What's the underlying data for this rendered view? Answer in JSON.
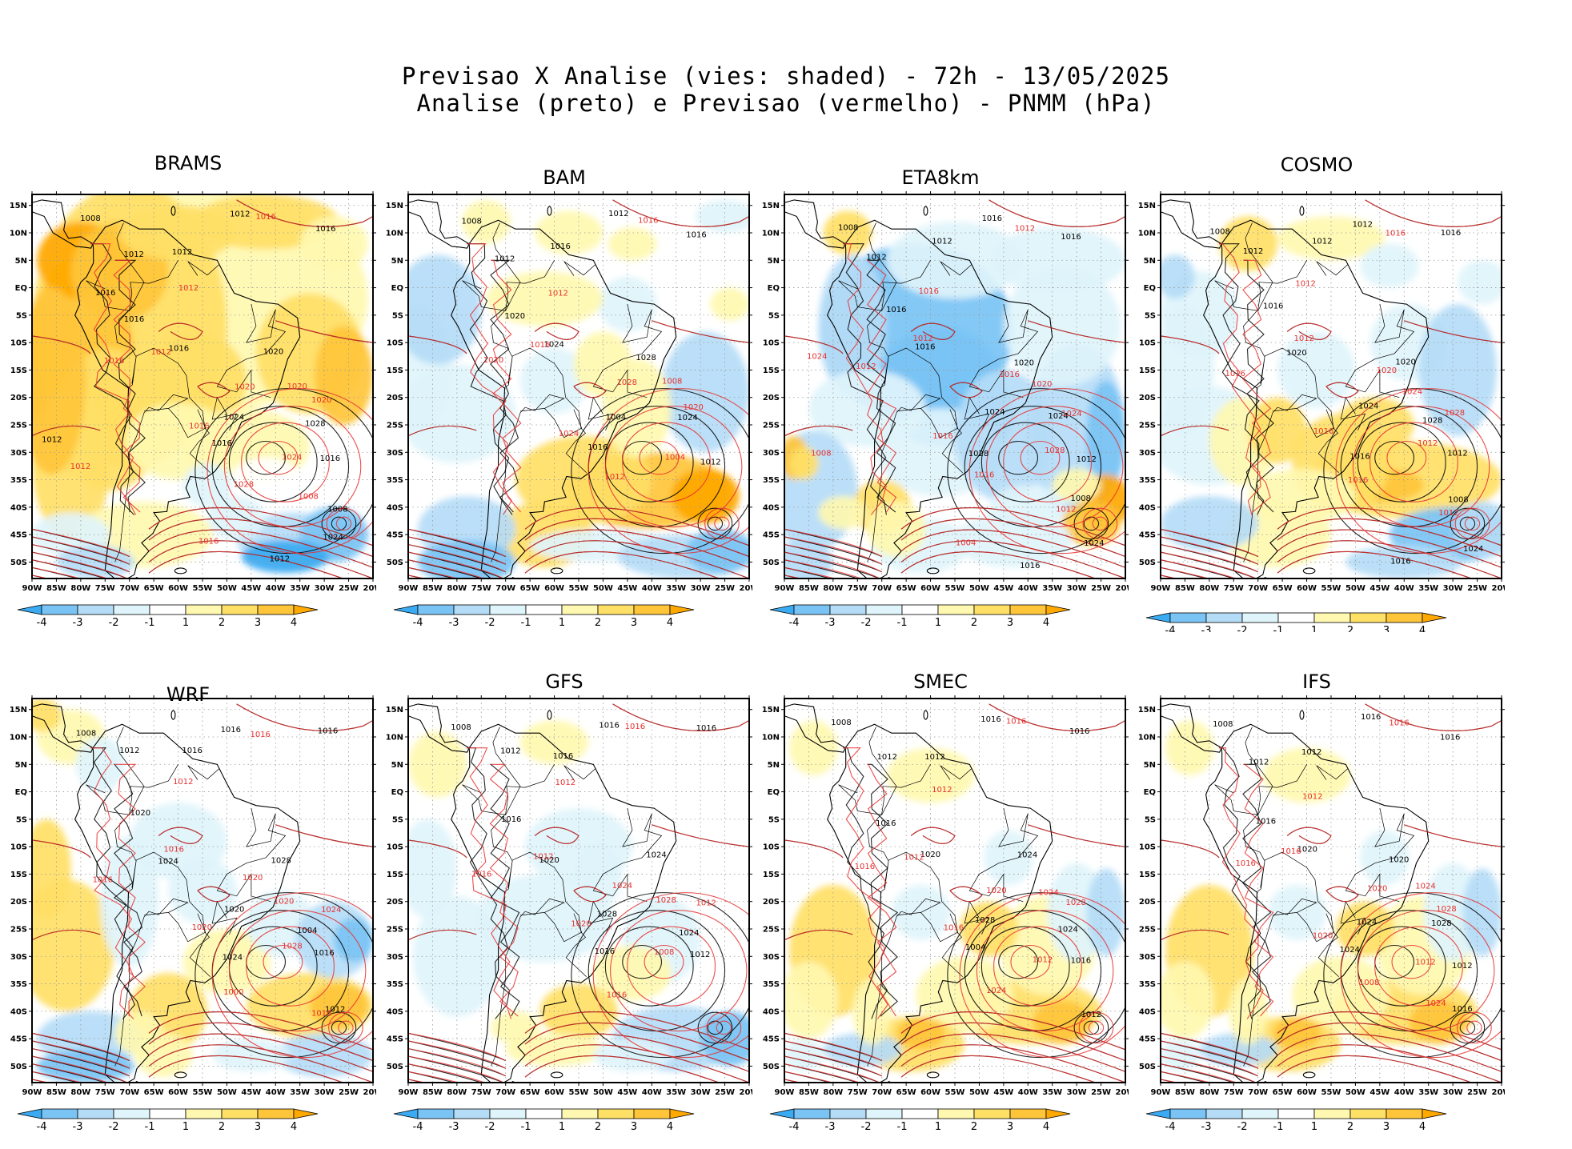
{
  "title": {
    "line1": "Previsao X Analise (vies: shaded) - 72h - 13/05/2025",
    "line2": "Analise (preto) e Previsao (vermelho) - PNMM (hPa)"
  },
  "axes": {
    "lat_labels": [
      "15N",
      "10N",
      "5N",
      "EQ",
      "5S",
      "10S",
      "15S",
      "20S",
      "25S",
      "30S",
      "35S",
      "40S",
      "45S",
      "50S"
    ],
    "lon_labels": [
      "90W",
      "85W",
      "80W",
      "75W",
      "70W",
      "65W",
      "60W",
      "55W",
      "50W",
      "45W",
      "40W",
      "35W",
      "30W",
      "25W",
      "20W"
    ]
  },
  "colorbar": {
    "labels": [
      "-4",
      "-3",
      "-2",
      "-1",
      "1",
      "2",
      "3",
      "4"
    ],
    "colors": [
      "#3aaaf2",
      "#7ac4f5",
      "#b5dcf7",
      "#dff4fb",
      "#ffffff",
      "#fff8b0",
      "#ffe066",
      "#ffc53a",
      "#ffa800"
    ]
  },
  "contour_colors": {
    "analysis": "#000000",
    "forecast": "#e8302f"
  },
  "panels": [
    {
      "name": "BRAMS",
      "bias": "warm-strong",
      "labels": {
        "analysis": [
          "1008",
          "1012",
          "1012",
          "1012",
          "1016",
          "1016",
          "1016",
          "1020",
          "1024",
          "1028",
          "1016",
          "1016",
          "1008",
          "1024",
          "1012",
          "1012",
          "1016"
        ],
        "forecast": [
          "1016",
          "1012",
          "1012",
          "1016",
          "1016",
          "1020",
          "1020",
          "1020",
          "1024",
          "1028",
          "1008",
          "1016",
          "1012"
        ]
      }
    },
    {
      "name": "BAM",
      "bias": "mixed",
      "labels": {
        "analysis": [
          "1008",
          "1012",
          "1016",
          "1012",
          "1016",
          "1020",
          "1024",
          "1028",
          "1004",
          "1024",
          "1016",
          "1012"
        ],
        "forecast": [
          "1016",
          "1012",
          "1016",
          "1020",
          "1024",
          "1028",
          "1008",
          "1020",
          "1004",
          "1012"
        ]
      }
    },
    {
      "name": "ETA8km",
      "bias": "cold",
      "labels": {
        "analysis": [
          "1008",
          "1012",
          "1012",
          "1016",
          "1016",
          "1016",
          "1016",
          "1020",
          "1024",
          "1024",
          "1028",
          "1012",
          "1008",
          "1024",
          "1016"
        ],
        "forecast": [
          "1012",
          "1016",
          "1012",
          "1012",
          "1016",
          "1016",
          "1020",
          "1024",
          "1028",
          "1016",
          "1012",
          "1004",
          "1008",
          "1024"
        ]
      }
    },
    {
      "name": "COSMO",
      "bias": "mixed-warm",
      "labels": {
        "analysis": [
          "1008",
          "1012",
          "1012",
          "1012",
          "1016",
          "1016",
          "1020",
          "1020",
          "1024",
          "1028",
          "1016",
          "1012",
          "1008",
          "1024",
          "1016"
        ],
        "forecast": [
          "1016",
          "1012",
          "1012",
          "1016",
          "1016",
          "1020",
          "1024",
          "1028",
          "1012",
          "1016",
          "1012"
        ]
      }
    },
    {
      "name": "WRF",
      "bias": "mixed",
      "labels": {
        "analysis": [
          "1008",
          "1012",
          "1016",
          "1016",
          "1016",
          "1020",
          "1024",
          "1028",
          "1020",
          "1004",
          "1024",
          "1016",
          "1012"
        ],
        "forecast": [
          "1016",
          "1012",
          "1016",
          "1016",
          "1020",
          "1020",
          "1020",
          "1024",
          "1028",
          "1000",
          "1016"
        ]
      }
    },
    {
      "name": "GFS",
      "bias": "weak",
      "labels": {
        "analysis": [
          "1008",
          "1012",
          "1016",
          "1016",
          "1016",
          "1016",
          "1020",
          "1024",
          "1028",
          "1024",
          "1016",
          "1012"
        ],
        "forecast": [
          "1016",
          "1012",
          "1012",
          "1016",
          "1020",
          "1024",
          "1028",
          "1012",
          "1008",
          "1016"
        ]
      }
    },
    {
      "name": "SMEC",
      "bias": "weak-warm",
      "labels": {
        "analysis": [
          "1008",
          "1012",
          "1012",
          "1016",
          "1016",
          "1016",
          "1020",
          "1024",
          "1028",
          "1024",
          "1004",
          "1016",
          "1012"
        ],
        "forecast": [
          "1016",
          "1012",
          "1012",
          "1016",
          "1016",
          "1020",
          "1024",
          "1028",
          "1012",
          "1024"
        ]
      }
    },
    {
      "name": "IFS",
      "bias": "weak-warm",
      "labels": {
        "analysis": [
          "1008",
          "1012",
          "1012",
          "1016",
          "1016",
          "1016",
          "1020",
          "1020",
          "1024",
          "1028",
          "1024",
          "1012",
          "1016"
        ],
        "forecast": [
          "1016",
          "1012",
          "1016",
          "1016",
          "1020",
          "1020",
          "1024",
          "1028",
          "1012",
          "1008",
          "1024"
        ]
      }
    }
  ]
}
